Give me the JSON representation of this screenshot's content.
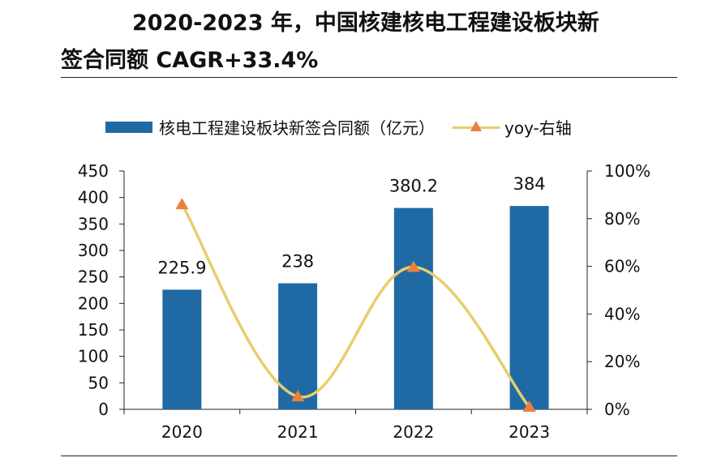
{
  "title": {
    "line1": "2020-2023 年，中国核建核电工程建设板块新",
    "line2": "签合同额 CAGR+33.4%"
  },
  "chart_data": {
    "type": "bar+line",
    "categories": [
      "2020",
      "2021",
      "2022",
      "2023"
    ],
    "series": [
      {
        "name": "核电工程建设板块新签合同额（亿元）",
        "type": "bar",
        "axis": "left",
        "values": [
          225.9,
          238,
          380.2,
          384
        ],
        "data_labels": [
          "225.9",
          "238",
          "380.2",
          "384"
        ],
        "color": "#1f6aa5"
      },
      {
        "name": "yoy-右轴",
        "type": "line",
        "axis": "right",
        "values": [
          86,
          5.4,
          59.7,
          1.0
        ],
        "unit": "%",
        "color": "#e8cd6c",
        "marker_color": "#e8823c"
      }
    ],
    "left_axis": {
      "ylim": [
        0,
        450
      ],
      "ticks": [
        "0",
        "50",
        "100",
        "150",
        "200",
        "250",
        "300",
        "350",
        "400",
        "450"
      ]
    },
    "right_axis": {
      "ylim": [
        0,
        100
      ],
      "ticks": [
        "0%",
        "20%",
        "40%",
        "60%",
        "80%",
        "100%"
      ]
    },
    "legend_position": "top",
    "grid": false
  }
}
